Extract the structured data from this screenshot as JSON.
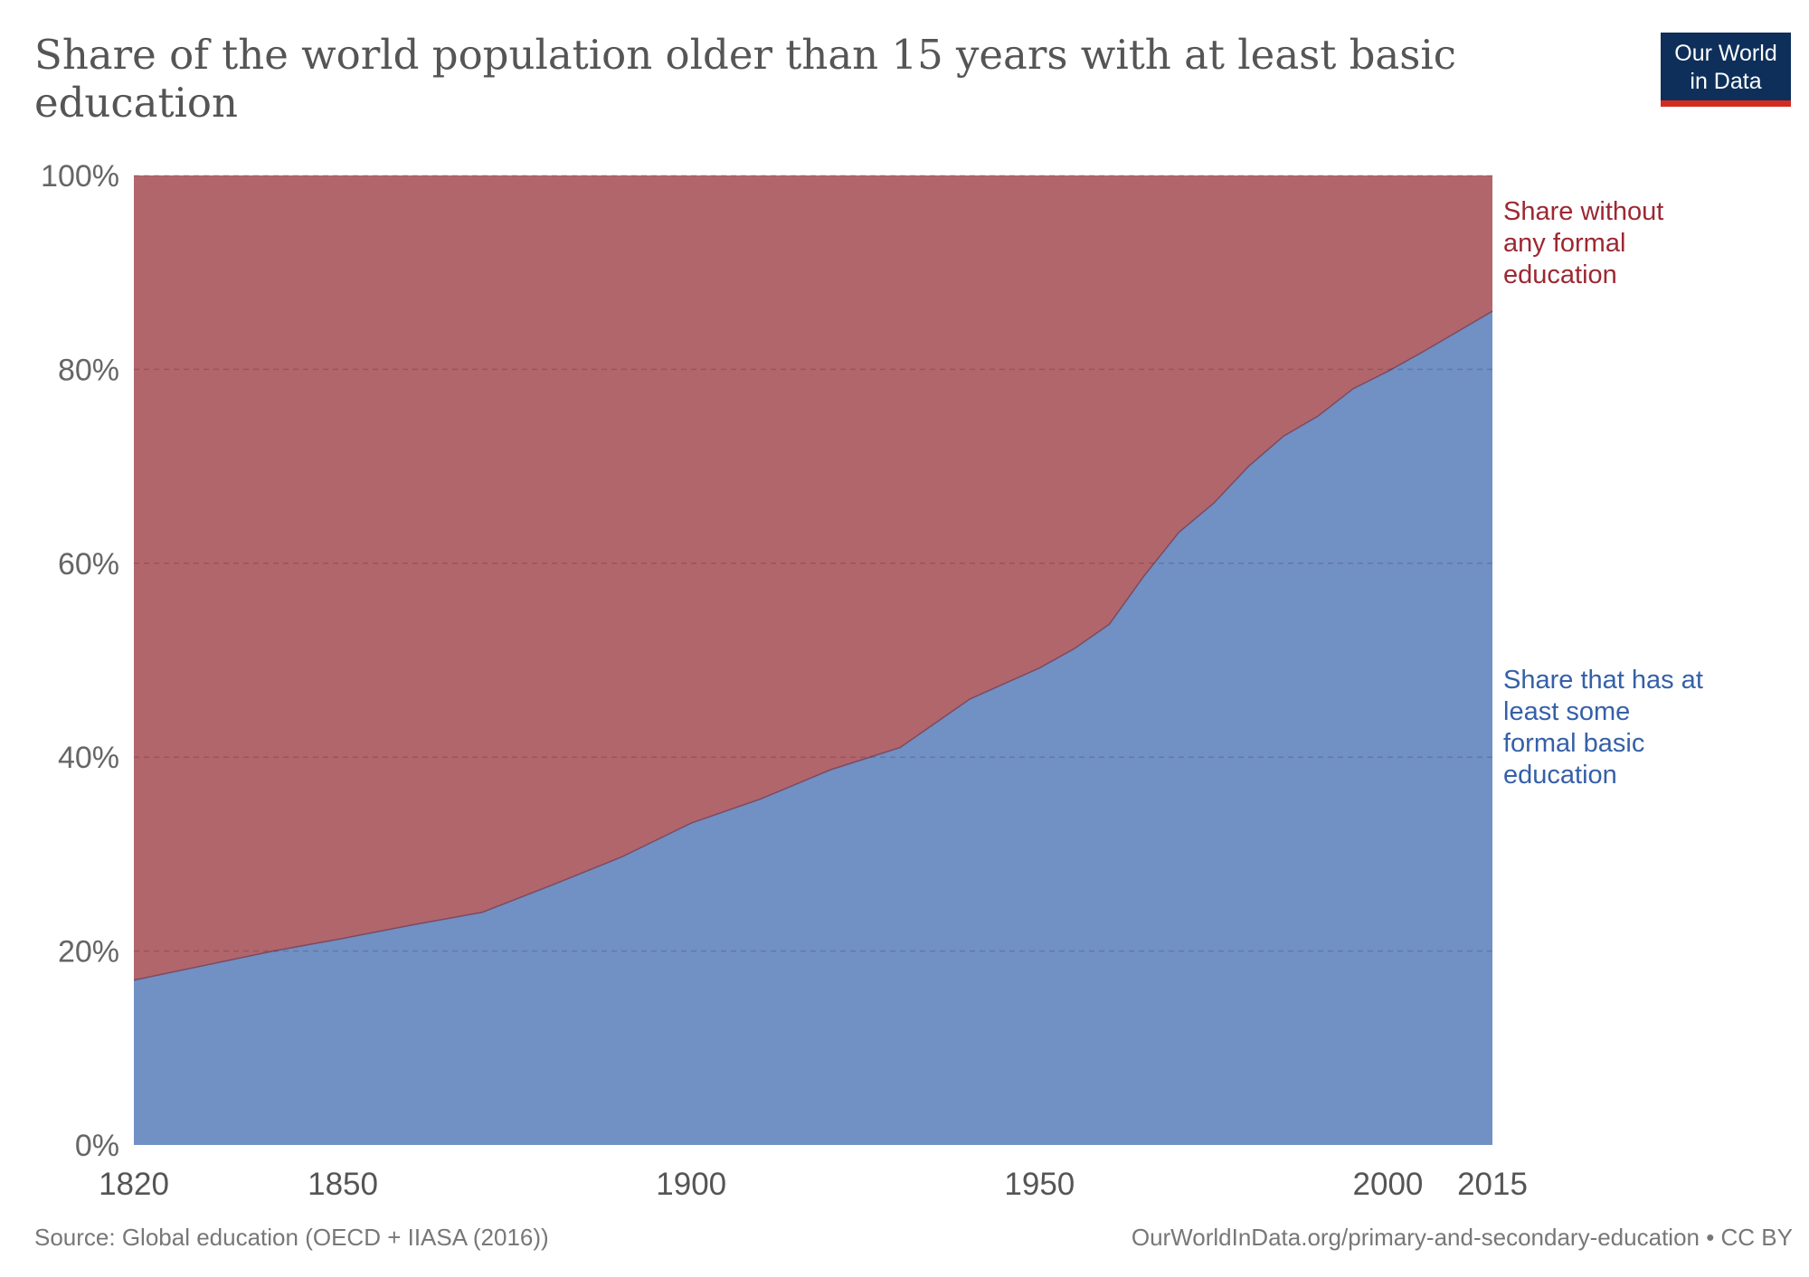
{
  "header": {
    "title_line1": "Share of the world population older than 15 years with at least basic",
    "title_line2": "education"
  },
  "logo": {
    "line1": "Our World",
    "line2": "in Data",
    "bg_color": "#0e2f5a",
    "accent_color": "#d42b21"
  },
  "footer": {
    "source": "Source: Global education (OECD + IIASA (2016))",
    "credit": "OurWorldInData.org/primary-and-secondary-education • CC BY"
  },
  "chart_data": {
    "type": "area",
    "stacked": true,
    "x": [
      1820,
      1830,
      1840,
      1850,
      1860,
      1870,
      1880,
      1890,
      1900,
      1910,
      1920,
      1930,
      1940,
      1950,
      1955,
      1960,
      1965,
      1970,
      1975,
      1980,
      1985,
      1990,
      1995,
      2000,
      2005,
      2010,
      2015
    ],
    "series": [
      {
        "name": "Share that has at least some formal basic education",
        "label_lines": [
          "Share that has at",
          "least some",
          "formal basic",
          "education"
        ],
        "color": "#7190c4",
        "label_color": "#3560a8",
        "values": [
          17,
          18.5,
          20,
          21.3,
          22.7,
          24,
          26.8,
          29.7,
          33.2,
          35.7,
          38.7,
          41,
          46,
          49.2,
          51.2,
          53.7,
          58.7,
          63.2,
          66.2,
          70,
          73.1,
          75.2,
          78,
          79.8,
          81.8,
          83.9,
          86
        ]
      },
      {
        "name": "Share without any formal education",
        "label_lines": [
          "Share without",
          "any formal",
          "education"
        ],
        "color": "#b1666c",
        "label_color": "#9c2832",
        "values": [
          83,
          81.5,
          80,
          78.7,
          77.3,
          76,
          73.2,
          70.3,
          66.8,
          64.3,
          61.3,
          59,
          54,
          50.8,
          48.8,
          46.3,
          41.3,
          36.8,
          33.8,
          30,
          26.9,
          24.8,
          22,
          20.2,
          18.2,
          16.1,
          14
        ]
      }
    ],
    "y_ticks": [
      "0%",
      "20%",
      "40%",
      "60%",
      "80%",
      "100%"
    ],
    "y_tick_values": [
      0,
      20,
      40,
      60,
      80,
      100
    ],
    "x_ticks": [
      "1820",
      "1850",
      "1900",
      "1950",
      "2000",
      "2015"
    ],
    "x_tick_values": [
      1820,
      1850,
      1900,
      1950,
      2000,
      2015
    ],
    "xlim": [
      1820,
      2015
    ],
    "ylim": [
      0,
      100
    ],
    "grid": true
  }
}
